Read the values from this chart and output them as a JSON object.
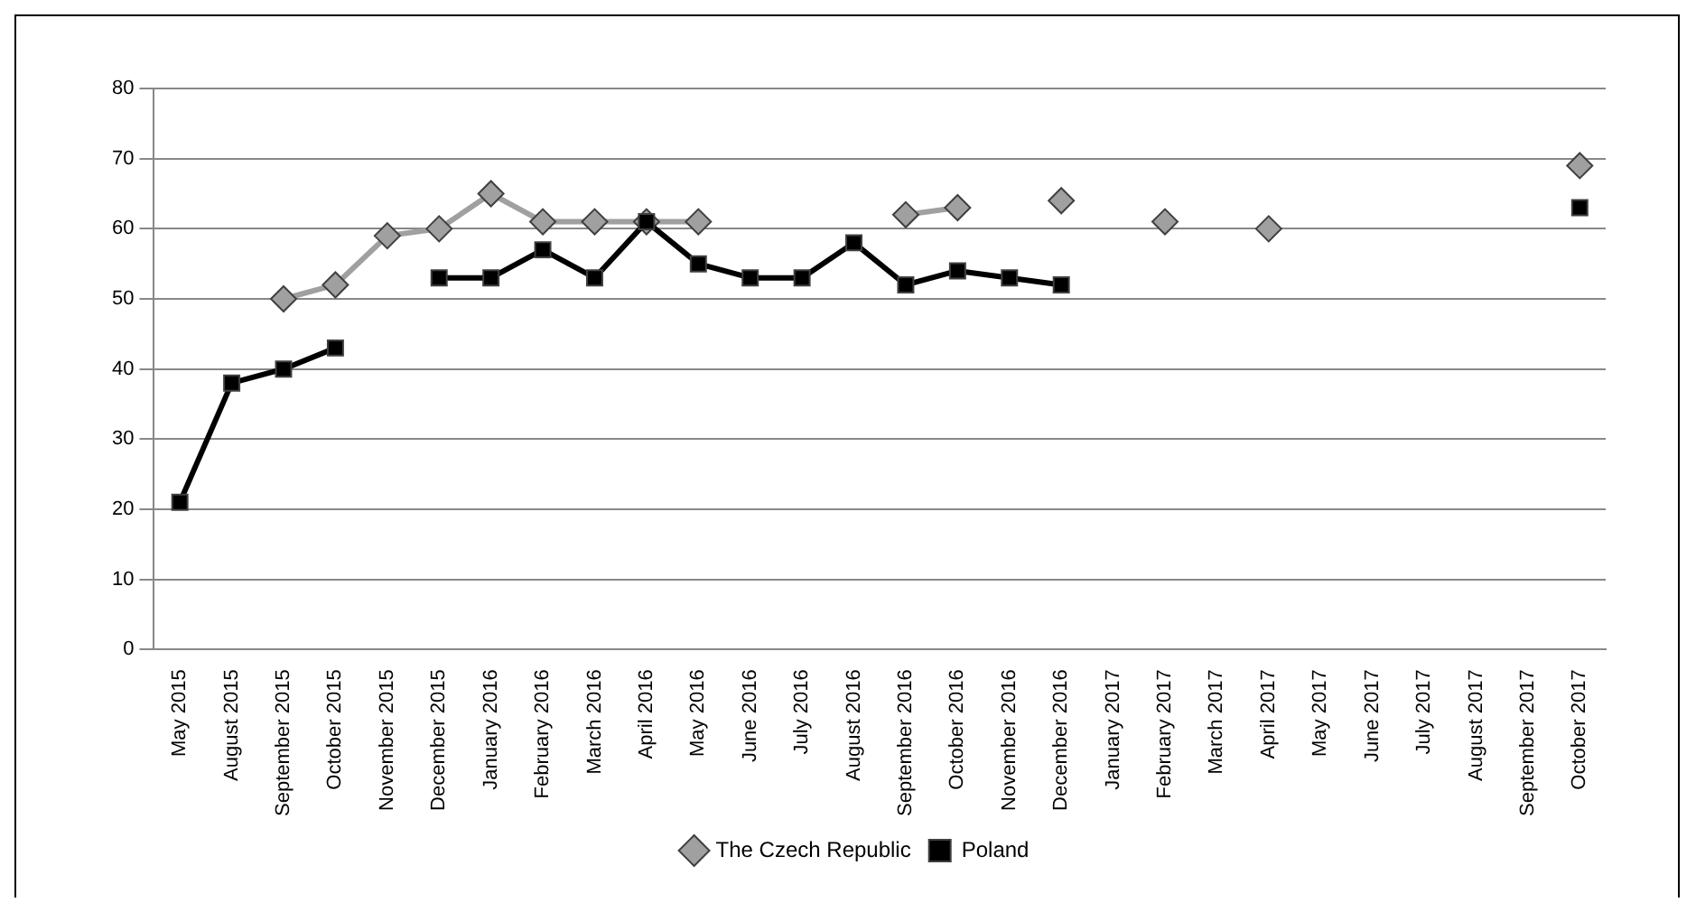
{
  "chart_data": {
    "type": "line",
    "categories": [
      "May 2015",
      "August 2015",
      "September 2015",
      "October 2015",
      "November 2015",
      "December 2015",
      "January 2016",
      "February 2016",
      "March 2016",
      "April 2016",
      "May 2016",
      "June 2016",
      "July 2016",
      "August 2016",
      "September 2016",
      "October 2016",
      "November 2016",
      "December 2016",
      "January 2017",
      "February 2017",
      "March 2017",
      "April 2017",
      "May 2017",
      "June 2017",
      "July 2017",
      "August 2017",
      "September 2017",
      "October 2017"
    ],
    "series": [
      {
        "name": "The Czech Republic",
        "color": "#a0a0a0",
        "marker": "diamond",
        "values": [
          null,
          null,
          50,
          52,
          59,
          60,
          65,
          61,
          61,
          61,
          61,
          null,
          null,
          null,
          62,
          63,
          null,
          64,
          null,
          61,
          null,
          60,
          null,
          null,
          null,
          null,
          null,
          69
        ]
      },
      {
        "name": "Poland",
        "color": "#000000",
        "marker": "square",
        "values": [
          21,
          38,
          40,
          43,
          null,
          53,
          53,
          57,
          53,
          61,
          55,
          53,
          53,
          58,
          52,
          54,
          53,
          52,
          null,
          null,
          null,
          null,
          null,
          null,
          null,
          null,
          null,
          63
        ]
      }
    ],
    "ylim": [
      0,
      80
    ],
    "yticks": [
      0,
      10,
      20,
      30,
      40,
      50,
      60,
      70,
      80
    ],
    "grid": "y",
    "legend": "bottom",
    "line_style": "solid"
  }
}
